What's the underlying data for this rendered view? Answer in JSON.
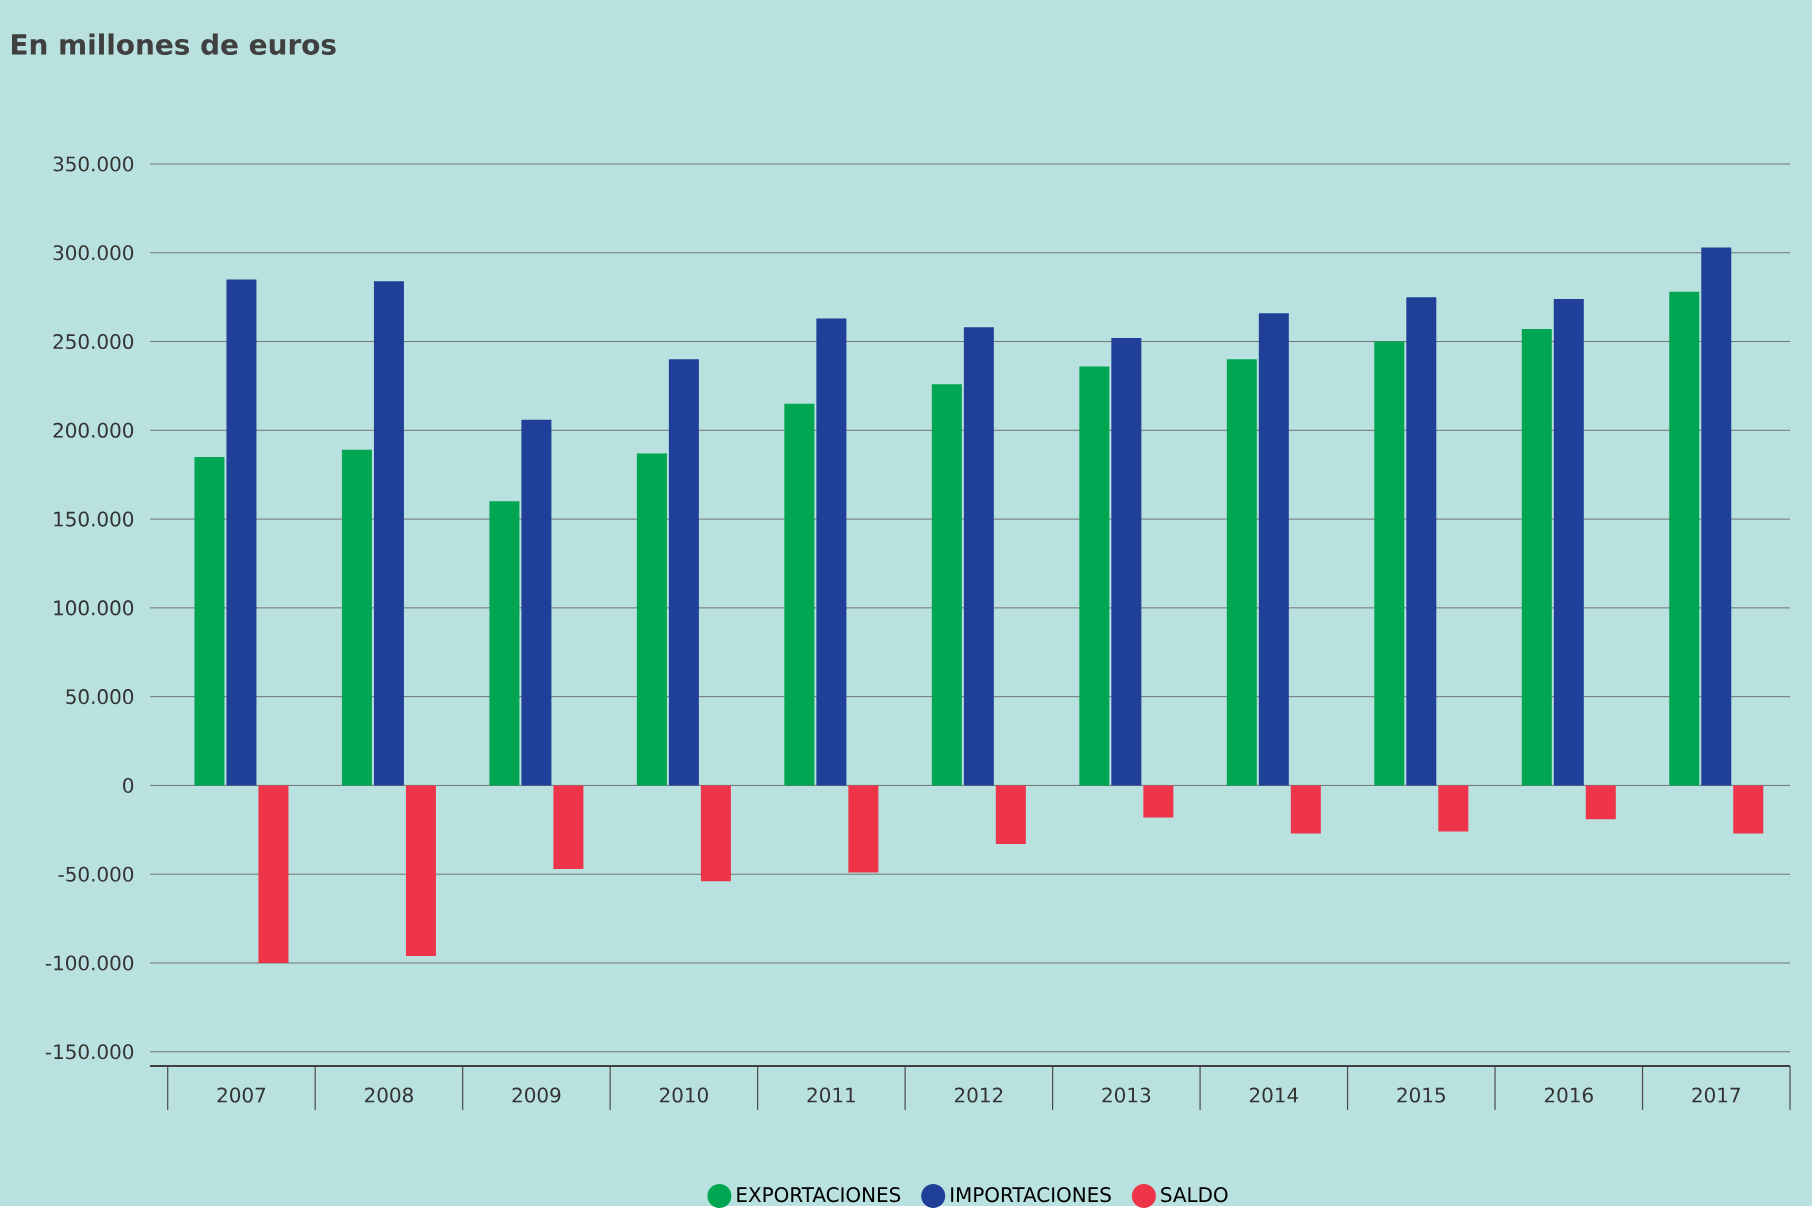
{
  "chart_data": {
    "type": "bar",
    "title": "En millones de euros",
    "categories": [
      "2007",
      "2008",
      "2009",
      "2010",
      "2011",
      "2012",
      "2013",
      "2014",
      "2015",
      "2016",
      "2017"
    ],
    "series": [
      {
        "name": "EXPORTACIONES",
        "color": "#00a651",
        "values": [
          185000,
          189000,
          160000,
          187000,
          215000,
          226000,
          236000,
          240000,
          250000,
          257000,
          278000
        ]
      },
      {
        "name": "IMPORTACIONES",
        "color": "#1f3f99",
        "values": [
          285000,
          284000,
          206000,
          240000,
          263000,
          258000,
          252000,
          266000,
          275000,
          274000,
          303000
        ]
      },
      {
        "name": "SALDO",
        "color": "#ee3448",
        "values": [
          -100000,
          -96000,
          -47000,
          -54000,
          -49000,
          -33000,
          -18000,
          -27000,
          -26000,
          -19000,
          -27000
        ]
      }
    ],
    "ylim": [
      -158000,
      350000
    ],
    "yticks": [
      {
        "value": -150000,
        "label": "-150.000"
      },
      {
        "value": -100000,
        "label": "-100.000"
      },
      {
        "value": -50000,
        "label": "-50.000"
      },
      0,
      {
        "value": 50000,
        "label": "50.000"
      },
      {
        "value": 100000,
        "label": "100.000"
      },
      {
        "value": 150000,
        "label": "150.000"
      },
      {
        "value": 200000,
        "label": "200.000"
      },
      {
        "value": 250000,
        "label": "250.000"
      },
      {
        "value": 300000,
        "label": "300.000"
      },
      {
        "value": 350000,
        "label": "350.000"
      }
    ],
    "grid": "y",
    "legend": "bottom"
  }
}
